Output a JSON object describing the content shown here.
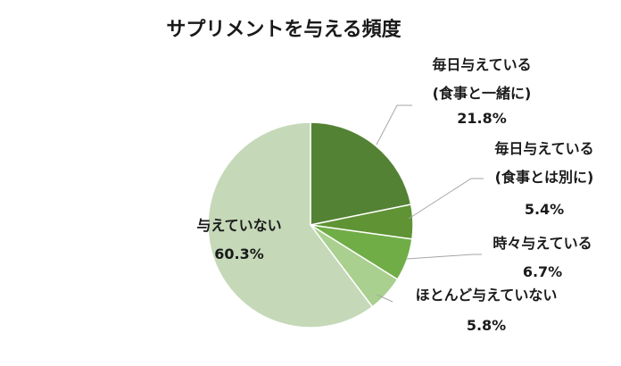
{
  "chart_data": {
    "type": "pie",
    "title": "サプリメントを与える頻度",
    "slices": [
      {
        "label_lines": [
          "毎日与えている",
          "(食事と一緒に)"
        ],
        "percent_label": "21.8%",
        "value": 21.8,
        "color": "#548235"
      },
      {
        "label_lines": [
          "毎日与えている",
          "(食事とは別に)"
        ],
        "percent_label": "5.4%",
        "value": 5.4,
        "color": "#5f9334"
      },
      {
        "label_lines": [
          "時々与えている"
        ],
        "percent_label": "6.7%",
        "value": 6.7,
        "color": "#70ad47"
      },
      {
        "label_lines": [
          "ほとんど与えていない"
        ],
        "percent_label": "5.8%",
        "value": 5.8,
        "color": "#a9d08e"
      },
      {
        "label_lines": [
          "与えていない"
        ],
        "percent_label": "60.3%",
        "value": 60.3,
        "color": "#c5d9b9"
      }
    ]
  }
}
